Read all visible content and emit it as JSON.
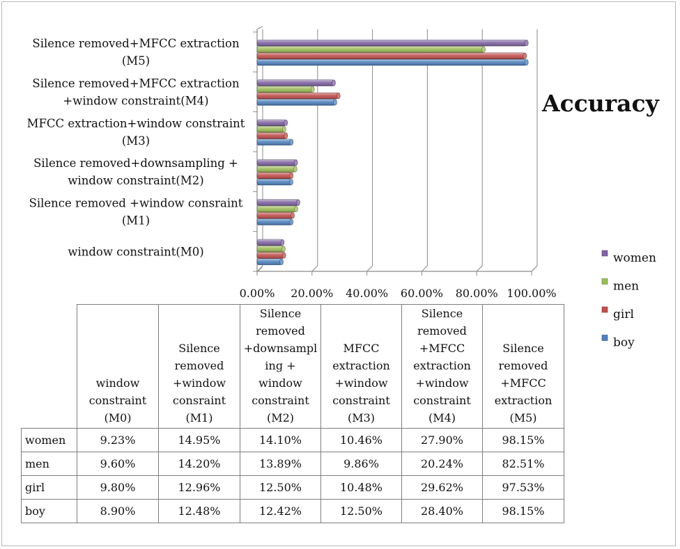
{
  "chart_data": {
    "type": "bar",
    "orientation": "horizontal",
    "title": "Accuracy",
    "xlabel": "",
    "ylabel": "",
    "xlim": [
      0,
      1
    ],
    "x_ticks": [
      "0.00%",
      "20.00%",
      "40.00%",
      "60.00%",
      "80.00%",
      "100.00%"
    ],
    "grid": "vertical",
    "legend_position": "right",
    "categories": [
      [
        "window constraint(M0)"
      ],
      [
        "Silence removed +window consraint",
        "(M1)"
      ],
      [
        "Silence removed+downsampling +",
        "window constraint(M2)"
      ],
      [
        "MFCC extraction+window constraint",
        "(M3)"
      ],
      [
        "Silence removed+MFCC extraction",
        "+window constraint(M4)"
      ],
      [
        "Silence removed+MFCC extraction",
        "(M5)"
      ]
    ],
    "series": [
      {
        "name": "boy",
        "color": "#4f81bd",
        "values": [
          0.089,
          0.1248,
          0.1242,
          0.125,
          0.284,
          0.9815
        ]
      },
      {
        "name": "girl",
        "color": "#c0504d",
        "values": [
          0.098,
          0.1296,
          0.125,
          0.1048,
          0.2962,
          0.9753
        ]
      },
      {
        "name": "men",
        "color": "#9bbb59",
        "values": [
          0.096,
          0.142,
          0.1389,
          0.0986,
          0.2024,
          0.8251
        ]
      },
      {
        "name": "women",
        "color": "#8064a2",
        "values": [
          0.0923,
          0.1495,
          0.141,
          0.1046,
          0.279,
          0.9815
        ]
      }
    ],
    "legend_order": [
      "women",
      "men",
      "girl",
      "boy"
    ]
  },
  "table": {
    "headers": [
      [
        "window",
        "constraint",
        "(M0)"
      ],
      [
        "Silence",
        "removed",
        "+window",
        "consraint",
        "(M1)"
      ],
      [
        "Silence",
        "removed",
        "+downsampl",
        "ing +",
        "window",
        "constraint",
        "(M2)"
      ],
      [
        "MFCC",
        "extraction",
        "+window",
        "constraint",
        "(M3)"
      ],
      [
        "Silence",
        "removed",
        "+MFCC",
        "extraction",
        "+window",
        "constraint",
        "(M4)"
      ],
      [
        "Silence",
        "removed",
        "+MFCC",
        "extraction",
        "(M5)"
      ]
    ],
    "rows": [
      {
        "label": "women",
        "values": [
          "9.23%",
          "14.95%",
          "14.10%",
          "10.46%",
          "27.90%",
          "98.15%"
        ]
      },
      {
        "label": "men",
        "values": [
          "9.60%",
          "14.20%",
          "13.89%",
          "9.86%",
          "20.24%",
          "82.51%"
        ]
      },
      {
        "label": "girl",
        "values": [
          "9.80%",
          "12.96%",
          "12.50%",
          "10.48%",
          "29.62%",
          "97.53%"
        ]
      },
      {
        "label": "boy",
        "values": [
          "8.90%",
          "12.48%",
          "12.42%",
          "12.50%",
          "28.40%",
          "98.15%"
        ]
      }
    ]
  }
}
